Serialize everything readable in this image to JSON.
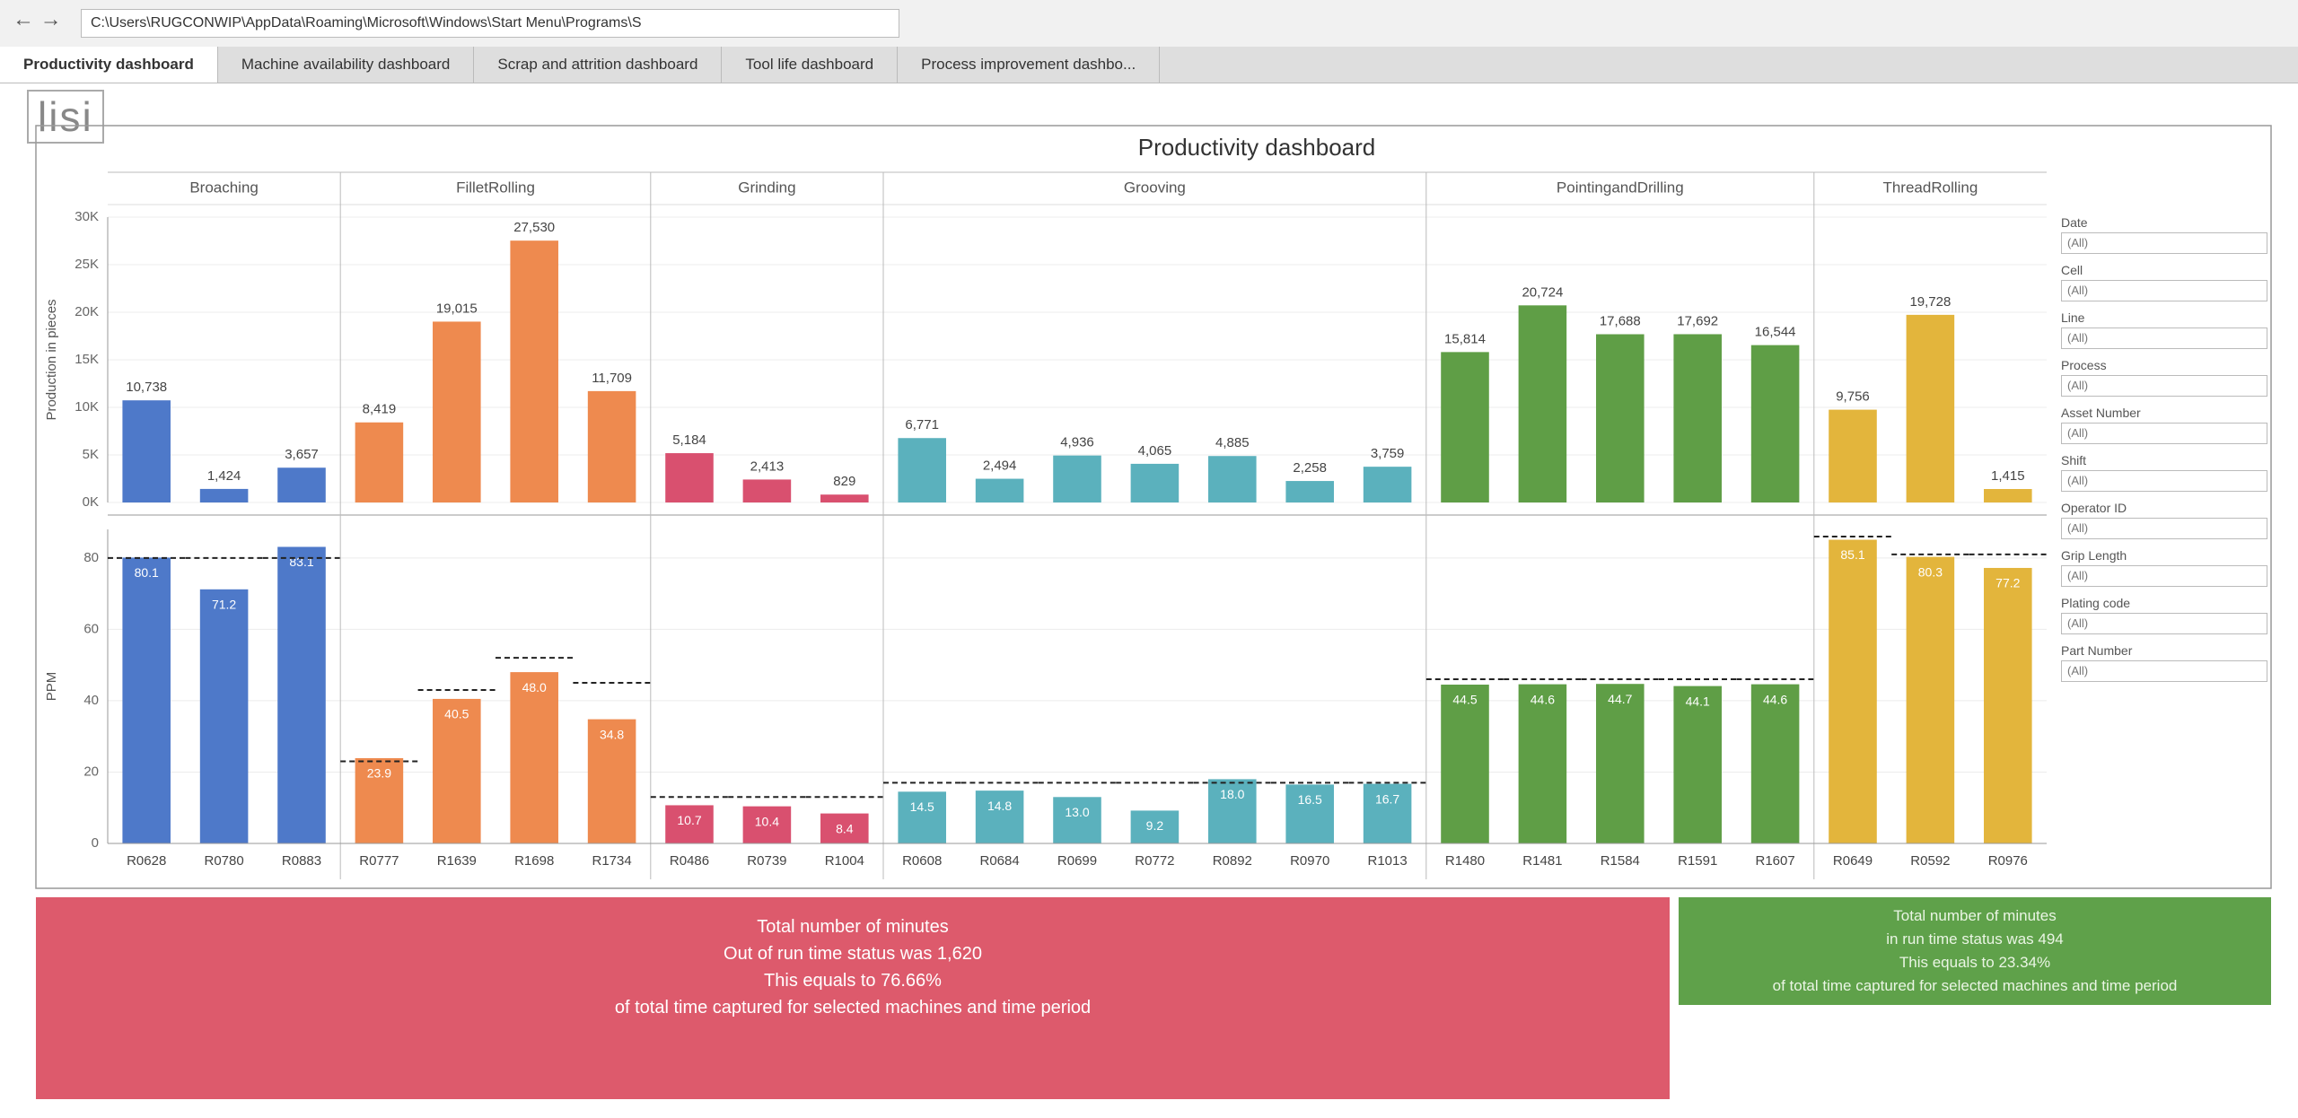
{
  "browser": {
    "address": "C:\\Users\\RUGCONWIP\\AppData\\Roaming\\Microsoft\\Windows\\Start Menu\\Programs\\S",
    "tabs": [
      "Productivity dashboard",
      "Machine availability dashboard",
      "Scrap and attrition dashboard",
      "Tool life dashboard",
      "Process improvement dashbo..."
    ]
  },
  "dashboard": {
    "logo": "lisi",
    "title": "Productivity dashboard",
    "production_axis": {
      "label": "Production in pieces",
      "ylim": [
        0,
        30000
      ],
      "yticks": [
        {
          "value": 0,
          "label": "0K"
        },
        {
          "value": 5000,
          "label": "5K"
        },
        {
          "value": 10000,
          "label": "10K"
        },
        {
          "value": 15000,
          "label": "15K"
        },
        {
          "value": 20000,
          "label": "20K"
        },
        {
          "value": 25000,
          "label": "25K"
        },
        {
          "value": 30000,
          "label": "30K"
        }
      ]
    },
    "ppm_axis": {
      "label": "PPM",
      "ylim": [
        0,
        88
      ],
      "yticks": [
        0,
        20,
        40,
        60,
        80
      ]
    },
    "processes": [
      {
        "name": "Broaching",
        "color": "#4e79c9",
        "machines": [
          "R0628",
          "R0780",
          "R0883"
        ],
        "production": [
          10738,
          1424,
          3657
        ],
        "production_labels": [
          "10,738",
          "1,424",
          "3,657"
        ],
        "ppm": [
          80.1,
          71.2,
          83.1
        ],
        "ppm_labels": [
          "80.1",
          "71.2",
          "83.1"
        ],
        "target": [
          80,
          80,
          80
        ]
      },
      {
        "name": "FilletRolling",
        "color": "#ee8a4f",
        "machines": [
          "R0777",
          "R1639",
          "R1698",
          "R1734"
        ],
        "production": [
          8419,
          19015,
          27530,
          11709
        ],
        "production_labels": [
          "8,419",
          "19,015",
          "27,530",
          "11,709"
        ],
        "ppm": [
          23.9,
          40.5,
          48.0,
          34.8
        ],
        "ppm_labels": [
          "23.9",
          "40.5",
          "48.0",
          "34.8"
        ],
        "target": [
          23,
          43,
          52,
          45
        ]
      },
      {
        "name": "Grinding",
        "color": "#d9506f",
        "machines": [
          "R0486",
          "R0739",
          "R1004"
        ],
        "production": [
          5184,
          2413,
          829
        ],
        "production_labels": [
          "5,184",
          "2,413",
          "829"
        ],
        "ppm": [
          10.7,
          10.4,
          8.4
        ],
        "ppm_labels": [
          "10.7",
          "10.4",
          "8.4"
        ],
        "target": [
          13,
          13,
          13
        ]
      },
      {
        "name": "Grooving",
        "color": "#5bb1bd",
        "machines": [
          "R0608",
          "R0684",
          "R0699",
          "R0772",
          "R0892",
          "R0970",
          "R1013"
        ],
        "production": [
          6771,
          2494,
          4936,
          4065,
          4885,
          2258,
          3759
        ],
        "production_labels": [
          "6,771",
          "2,494",
          "4,936",
          "4,065",
          "4,885",
          "2,258",
          "3,759"
        ],
        "ppm": [
          14.5,
          14.8,
          13.0,
          9.2,
          18.0,
          16.5,
          16.7
        ],
        "ppm_labels": [
          "14.5",
          "14.8",
          "13.0",
          "9.2",
          "18.0",
          "16.5",
          "16.7"
        ],
        "target": [
          17,
          17,
          17,
          17,
          17,
          17,
          17
        ]
      },
      {
        "name": "PointingandDrilling",
        "color": "#5f9e46",
        "machines": [
          "R1480",
          "R1481",
          "R1584",
          "R1591",
          "R1607"
        ],
        "production": [
          15814,
          20724,
          17688,
          17692,
          16544
        ],
        "production_labels": [
          "15,814",
          "20,724",
          "17,688",
          "17,692",
          "16,544"
        ],
        "ppm": [
          44.5,
          44.6,
          44.7,
          44.1,
          44.6
        ],
        "ppm_labels": [
          "44.5",
          "44.6",
          "44.7",
          "44.1",
          "44.6"
        ],
        "target": [
          46,
          46,
          46,
          46,
          46
        ]
      },
      {
        "name": "ThreadRolling",
        "color": "#e3b53c",
        "machines": [
          "R0649",
          "R0592",
          "R0976"
        ],
        "production": [
          9756,
          19728,
          1415
        ],
        "production_labels": [
          "9,756",
          "19,728",
          "1,415"
        ],
        "ppm": [
          85.1,
          80.3,
          77.2
        ],
        "ppm_labels": [
          "85.1",
          "80.3",
          "77.2"
        ],
        "target": [
          86,
          81,
          81
        ]
      }
    ],
    "filters": [
      {
        "label": "Date",
        "value": "(All)"
      },
      {
        "label": "Cell",
        "value": "(All)"
      },
      {
        "label": "Line",
        "value": "(All)"
      },
      {
        "label": "Process",
        "value": "(All)"
      },
      {
        "label": "Asset Number",
        "value": "(All)"
      },
      {
        "label": "Shift",
        "value": "(All)"
      },
      {
        "label": "Operator ID",
        "value": "(All)"
      },
      {
        "label": "Grip Length",
        "value": "(All)"
      },
      {
        "label": "Plating code",
        "value": "(All)"
      },
      {
        "label": "Part Number",
        "value": "(All)"
      }
    ],
    "status": {
      "out_of_run": [
        "Total number of minutes",
        "Out of run time status was 1,620",
        "This equals to 76.66%",
        "of total time captured for selected machines and time period"
      ],
      "in_run": [
        "Total number of minutes",
        "in run time status was 494",
        "This equals to 23.34%",
        "of total time captured for selected machines and time period"
      ]
    }
  }
}
